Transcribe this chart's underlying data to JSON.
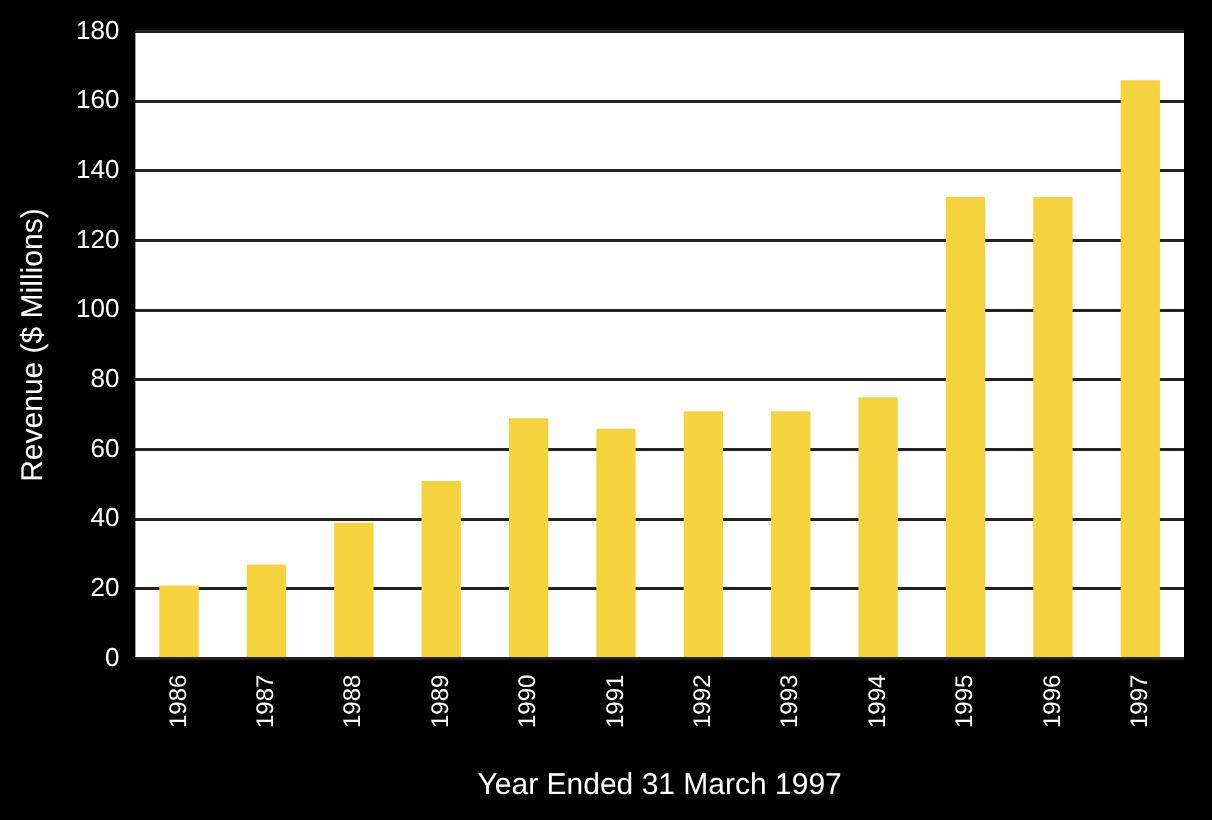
{
  "chart_data": {
    "type": "bar",
    "xlabel": "Year Ended 31 March 1997",
    "ylabel": "Revenue ($ Millions)",
    "categories": [
      "1986",
      "1987",
      "1988",
      "1989",
      "1990",
      "1991",
      "1992",
      "1993",
      "1994",
      "1995",
      "1996",
      "1997"
    ],
    "values": [
      21,
      27,
      39,
      51,
      69,
      66,
      71,
      71,
      75,
      132.5,
      132.5,
      166
    ],
    "color": "#f5d33f",
    "ylim": [
      0,
      180
    ],
    "yticks": [
      0,
      20,
      40,
      60,
      80,
      100,
      120,
      140,
      160,
      180
    ],
    "grid": "y",
    "legend": false
  }
}
